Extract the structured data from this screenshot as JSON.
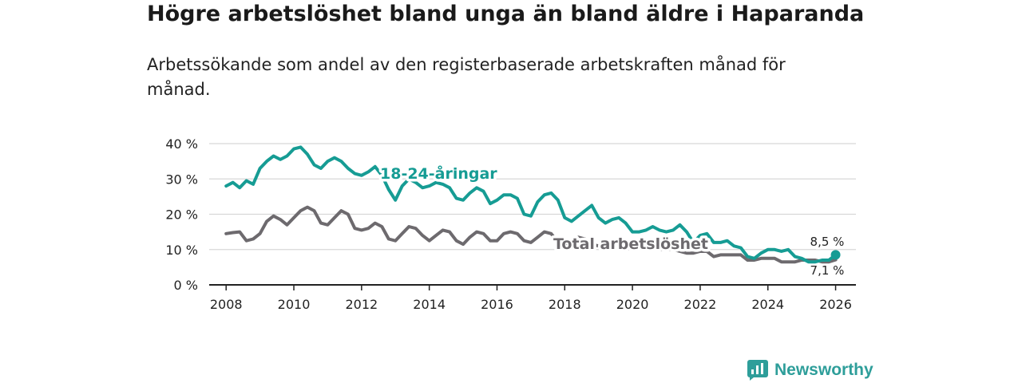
{
  "chart_data": {
    "type": "line",
    "title": "Högre arbetslöshet bland unga än bland äldre i Haparanda",
    "subtitle": "Arbetssökande som andel av den registerbaserade arbetskraften månad för månad.",
    "xlabel": "",
    "ylabel": "",
    "xlim": [
      2007.5,
      2026.6
    ],
    "ylim": [
      0,
      40
    ],
    "x_ticks": [
      2008,
      2010,
      2012,
      2014,
      2016,
      2018,
      2020,
      2022,
      2024,
      2026
    ],
    "y_ticks": [
      0,
      10,
      20,
      30,
      40
    ],
    "y_tick_labels": [
      "0 %",
      "10 %",
      "20 %",
      "30 %",
      "40 %"
    ],
    "grid": true,
    "colors": {
      "youth": "#169c94",
      "total": "#6d6a6e",
      "grid": "#d8d8d8",
      "axis": "#222222"
    },
    "series": [
      {
        "name": "18-24-åringar",
        "color": "#169c94",
        "label": "18-24-åringar",
        "points": [
          [
            2008.0,
            28
          ],
          [
            2008.2,
            29
          ],
          [
            2008.4,
            27.5
          ],
          [
            2008.6,
            29.5
          ],
          [
            2008.8,
            28.5
          ],
          [
            2009.0,
            33
          ],
          [
            2009.2,
            35
          ],
          [
            2009.4,
            36.5
          ],
          [
            2009.6,
            35.5
          ],
          [
            2009.8,
            36.5
          ],
          [
            2010.0,
            38.5
          ],
          [
            2010.2,
            39
          ],
          [
            2010.4,
            37
          ],
          [
            2010.6,
            34
          ],
          [
            2010.8,
            33
          ],
          [
            2011.0,
            35
          ],
          [
            2011.2,
            36
          ],
          [
            2011.4,
            35
          ],
          [
            2011.6,
            33
          ],
          [
            2011.8,
            31.5
          ],
          [
            2012.0,
            31
          ],
          [
            2012.2,
            32
          ],
          [
            2012.4,
            33.5
          ],
          [
            2012.6,
            31
          ],
          [
            2012.8,
            27
          ],
          [
            2013.0,
            24
          ],
          [
            2013.2,
            28
          ],
          [
            2013.4,
            30
          ],
          [
            2013.6,
            29
          ],
          [
            2013.8,
            27.5
          ],
          [
            2014.0,
            28
          ],
          [
            2014.2,
            29
          ],
          [
            2014.4,
            28.5
          ],
          [
            2014.6,
            27.5
          ],
          [
            2014.8,
            24.5
          ],
          [
            2015.0,
            24
          ],
          [
            2015.2,
            26
          ],
          [
            2015.4,
            27.5
          ],
          [
            2015.6,
            26.5
          ],
          [
            2015.8,
            23
          ],
          [
            2016.0,
            24
          ],
          [
            2016.2,
            25.5
          ],
          [
            2016.4,
            25.5
          ],
          [
            2016.6,
            24.5
          ],
          [
            2016.8,
            20
          ],
          [
            2017.0,
            19.5
          ],
          [
            2017.2,
            23.5
          ],
          [
            2017.4,
            25.5
          ],
          [
            2017.6,
            26
          ],
          [
            2017.8,
            24
          ],
          [
            2018.0,
            19
          ],
          [
            2018.2,
            18
          ],
          [
            2018.4,
            19.5
          ],
          [
            2018.6,
            21
          ],
          [
            2018.8,
            22.5
          ],
          [
            2019.0,
            19
          ],
          [
            2019.2,
            17.5
          ],
          [
            2019.4,
            18.5
          ],
          [
            2019.6,
            19
          ],
          [
            2019.8,
            17.5
          ],
          [
            2020.0,
            15
          ],
          [
            2020.2,
            15
          ],
          [
            2020.4,
            15.5
          ],
          [
            2020.6,
            16.5
          ],
          [
            2020.8,
            15.5
          ],
          [
            2021.0,
            15
          ],
          [
            2021.2,
            15.5
          ],
          [
            2021.4,
            17
          ],
          [
            2021.6,
            15
          ],
          [
            2021.8,
            12
          ],
          [
            2022.0,
            14
          ],
          [
            2022.2,
            14.5
          ],
          [
            2022.4,
            12
          ],
          [
            2022.6,
            12
          ],
          [
            2022.8,
            12.5
          ],
          [
            2023.0,
            11
          ],
          [
            2023.2,
            10.5
          ],
          [
            2023.4,
            8
          ],
          [
            2023.6,
            7.5
          ],
          [
            2023.8,
            9
          ],
          [
            2024.0,
            10
          ],
          [
            2024.2,
            10
          ],
          [
            2024.4,
            9.5
          ],
          [
            2024.6,
            10
          ],
          [
            2024.8,
            8
          ],
          [
            2025.0,
            7.5
          ],
          [
            2025.2,
            6.5
          ],
          [
            2025.4,
            6.5
          ],
          [
            2025.6,
            7
          ],
          [
            2025.8,
            7
          ],
          [
            2026.0,
            8.5
          ]
        ],
        "end_label": "8,5 %"
      },
      {
        "name": "Total arbetslöshet",
        "color": "#6d6a6e",
        "label": "Total arbetslöshet",
        "points": [
          [
            2008.0,
            14.5
          ],
          [
            2008.2,
            14.8
          ],
          [
            2008.4,
            15
          ],
          [
            2008.6,
            12.5
          ],
          [
            2008.8,
            13
          ],
          [
            2009.0,
            14.5
          ],
          [
            2009.2,
            18
          ],
          [
            2009.4,
            19.5
          ],
          [
            2009.6,
            18.5
          ],
          [
            2009.8,
            17
          ],
          [
            2010.0,
            19
          ],
          [
            2010.2,
            21
          ],
          [
            2010.4,
            22
          ],
          [
            2010.6,
            21
          ],
          [
            2010.8,
            17.5
          ],
          [
            2011.0,
            17
          ],
          [
            2011.2,
            19
          ],
          [
            2011.4,
            21
          ],
          [
            2011.6,
            20
          ],
          [
            2011.8,
            16
          ],
          [
            2012.0,
            15.5
          ],
          [
            2012.2,
            16
          ],
          [
            2012.4,
            17.5
          ],
          [
            2012.6,
            16.5
          ],
          [
            2012.8,
            13
          ],
          [
            2013.0,
            12.5
          ],
          [
            2013.2,
            14.5
          ],
          [
            2013.4,
            16.5
          ],
          [
            2013.6,
            16
          ],
          [
            2013.8,
            14
          ],
          [
            2014.0,
            12.5
          ],
          [
            2014.2,
            14
          ],
          [
            2014.4,
            15.5
          ],
          [
            2014.6,
            15
          ],
          [
            2014.8,
            12.5
          ],
          [
            2015.0,
            11.5
          ],
          [
            2015.2,
            13.5
          ],
          [
            2015.4,
            15
          ],
          [
            2015.6,
            14.5
          ],
          [
            2015.8,
            12.5
          ],
          [
            2016.0,
            12.5
          ],
          [
            2016.2,
            14.5
          ],
          [
            2016.4,
            15
          ],
          [
            2016.6,
            14.5
          ],
          [
            2016.8,
            12.5
          ],
          [
            2017.0,
            12
          ],
          [
            2017.2,
            13.5
          ],
          [
            2017.4,
            15
          ],
          [
            2017.6,
            14.5
          ],
          [
            2017.8,
            12
          ],
          [
            2018.0,
            11.5
          ],
          [
            2018.2,
            12.5
          ],
          [
            2018.4,
            13.5
          ],
          [
            2018.6,
            13
          ],
          [
            2018.8,
            11.5
          ],
          [
            2019.0,
            11
          ],
          [
            2019.2,
            11.5
          ],
          [
            2019.4,
            12
          ],
          [
            2019.6,
            11.5
          ],
          [
            2019.8,
            10
          ],
          [
            2020.0,
            10.5
          ],
          [
            2020.2,
            11
          ],
          [
            2020.4,
            11.5
          ],
          [
            2020.6,
            11
          ],
          [
            2020.8,
            10
          ],
          [
            2021.0,
            10
          ],
          [
            2021.2,
            10
          ],
          [
            2021.4,
            9.5
          ],
          [
            2021.6,
            9
          ],
          [
            2021.8,
            9
          ],
          [
            2022.0,
            9.5
          ],
          [
            2022.2,
            9.5
          ],
          [
            2022.4,
            8
          ],
          [
            2022.6,
            8.5
          ],
          [
            2022.8,
            8.5
          ],
          [
            2023.0,
            8.5
          ],
          [
            2023.2,
            8.5
          ],
          [
            2023.4,
            7
          ],
          [
            2023.6,
            7
          ],
          [
            2023.8,
            7.5
          ],
          [
            2024.0,
            7.5
          ],
          [
            2024.2,
            7.5
          ],
          [
            2024.4,
            6.5
          ],
          [
            2024.6,
            6.5
          ],
          [
            2024.8,
            6.5
          ],
          [
            2025.0,
            7
          ],
          [
            2025.2,
            7
          ],
          [
            2025.4,
            7
          ],
          [
            2025.6,
            6.5
          ],
          [
            2025.8,
            6.5
          ],
          [
            2026.0,
            7.1
          ]
        ],
        "end_label": "7,1 %"
      }
    ]
  },
  "brand": {
    "name": "Newsworthy",
    "icon": "newsworthy-logo-icon",
    "color": "#2e9e9a"
  }
}
